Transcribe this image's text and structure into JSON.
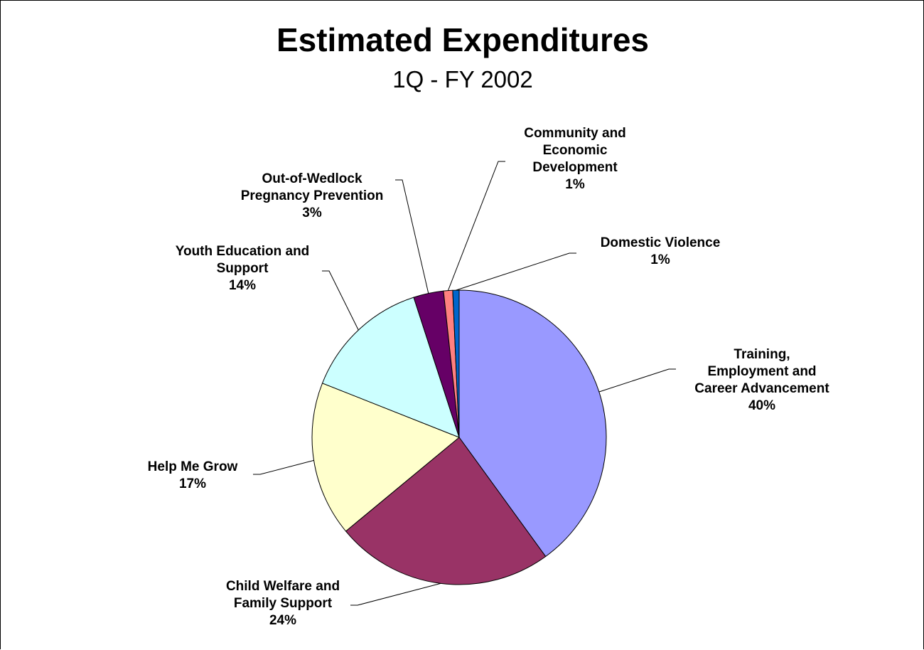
{
  "chart_data": {
    "type": "pie",
    "title": "Estimated Expenditures",
    "subtitle": "1Q - FY 2002",
    "slices": [
      {
        "label": "Training, Employment and Career Advancement",
        "label_lines": [
          "Training,",
          "Employment and",
          "Career Advancement"
        ],
        "value": 40,
        "display": "40%",
        "color": "#9999FF"
      },
      {
        "label": "Child Welfare and Family Support",
        "label_lines": [
          "Child Welfare and",
          "Family Support"
        ],
        "value": 24,
        "display": "24%",
        "color": "#993366"
      },
      {
        "label": "Help Me Grow",
        "label_lines": [
          "Help Me Grow"
        ],
        "value": 17,
        "display": "17%",
        "color": "#FFFFCC"
      },
      {
        "label": "Youth Education and Support",
        "label_lines": [
          "Youth Education and",
          "Support"
        ],
        "value": 14,
        "display": "14%",
        "color": "#CCFFFF"
      },
      {
        "label": "Out-of-Wedlock Pregnancy Prevention",
        "label_lines": [
          "Out-of-Wedlock",
          "Pregnancy Prevention"
        ],
        "value": 3,
        "display": "3%",
        "color": "#660066"
      },
      {
        "label": "Community and Economic Development",
        "label_lines": [
          "Community and",
          "Economic",
          "Development"
        ],
        "value": 1,
        "display": "1%",
        "color": "#FF8080"
      },
      {
        "label": "Domestic Violence",
        "label_lines": [
          "Domestic Violence"
        ],
        "value": 1,
        "display": "1%",
        "color": "#0066CC"
      }
    ]
  }
}
